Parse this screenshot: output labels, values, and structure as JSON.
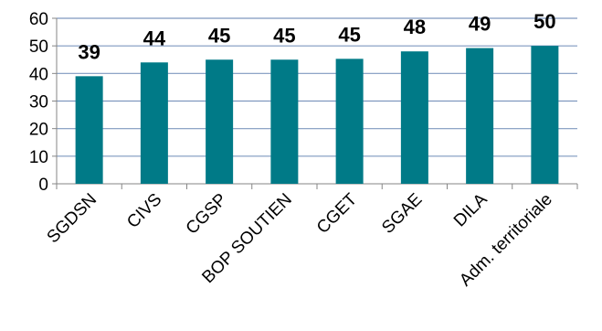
{
  "chart_data": {
    "type": "bar",
    "categories": [
      "SGDSN",
      "CIVS",
      "CGSP",
      "BOP SOUTIEN",
      "CGET",
      "SGAE",
      "DILA",
      "Adm. territoriale"
    ],
    "values": [
      39,
      44,
      45,
      45,
      45.3,
      48,
      49.2,
      50
    ],
    "data_labels": [
      "39",
      "44",
      "45",
      "45",
      "45",
      "48",
      "49",
      "50"
    ],
    "ylim": [
      0,
      60
    ],
    "yticks": [
      "0",
      "10",
      "20",
      "30",
      "40",
      "50",
      "60"
    ],
    "grid": true,
    "bar_color": "#007A87",
    "grid_color": "#7F98BF",
    "axis_color": "#868686"
  }
}
